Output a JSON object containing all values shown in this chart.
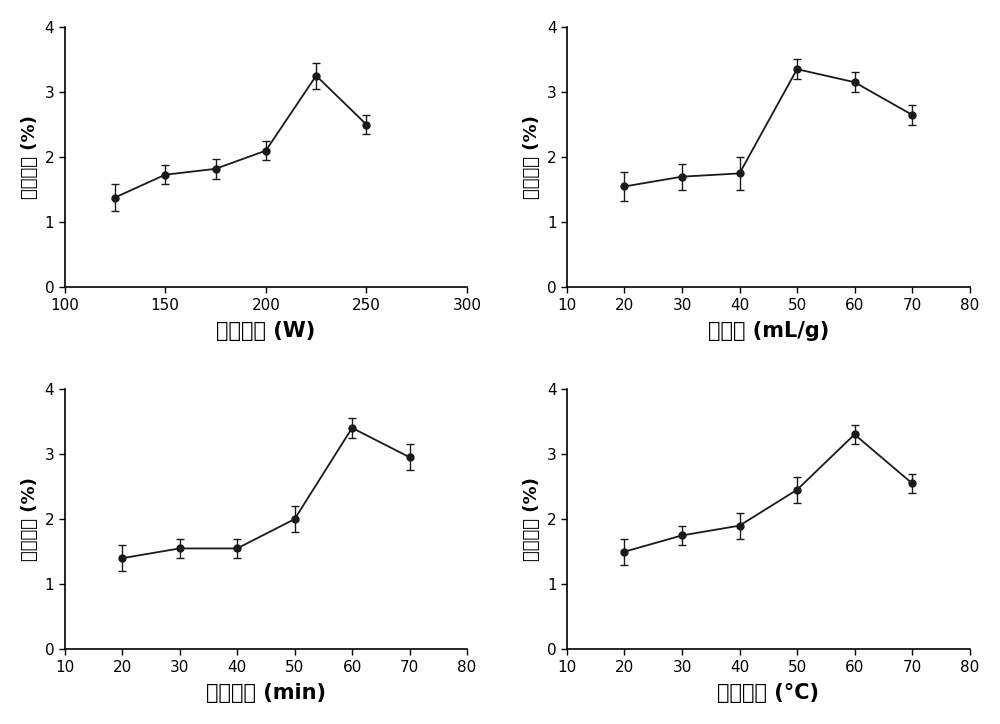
{
  "subplots": [
    {
      "x": [
        125,
        150,
        175,
        200,
        225,
        250
      ],
      "y": [
        1.38,
        1.73,
        1.82,
        2.1,
        3.25,
        2.5
      ],
      "yerr": [
        0.2,
        0.15,
        0.15,
        0.15,
        0.2,
        0.15
      ],
      "xlabel": "超声功率 (W)",
      "ylabel": "提取产率 (%)",
      "xlim": [
        100,
        300
      ],
      "xticks": [
        100,
        150,
        200,
        250,
        300
      ],
      "ylim": [
        0,
        4
      ],
      "yticks": [
        0,
        1,
        2,
        3,
        4
      ]
    },
    {
      "x": [
        20,
        30,
        40,
        50,
        60,
        70
      ],
      "y": [
        1.55,
        1.7,
        1.75,
        3.35,
        3.15,
        2.65
      ],
      "yerr": [
        0.22,
        0.2,
        0.25,
        0.15,
        0.15,
        0.15
      ],
      "xlabel": "料液比 (mL/g)",
      "ylabel": "提取产率 (%)",
      "xlim": [
        10,
        80
      ],
      "xticks": [
        10,
        20,
        30,
        40,
        50,
        60,
        70,
        80
      ],
      "ylim": [
        0,
        4
      ],
      "yticks": [
        0,
        1,
        2,
        3,
        4
      ]
    },
    {
      "x": [
        20,
        30,
        40,
        50,
        60,
        70
      ],
      "y": [
        1.4,
        1.55,
        1.55,
        2.0,
        3.4,
        2.95
      ],
      "yerr": [
        0.2,
        0.15,
        0.15,
        0.2,
        0.15,
        0.2
      ],
      "xlabel": "提取时间 (min)",
      "ylabel": "提取产率 (%)",
      "xlim": [
        10,
        80
      ],
      "xticks": [
        10,
        20,
        30,
        40,
        50,
        60,
        70,
        80
      ],
      "ylim": [
        0,
        4
      ],
      "yticks": [
        0,
        1,
        2,
        3,
        4
      ]
    },
    {
      "x": [
        20,
        30,
        40,
        50,
        60,
        70
      ],
      "y": [
        1.5,
        1.75,
        1.9,
        2.45,
        3.3,
        2.55
      ],
      "yerr": [
        0.2,
        0.15,
        0.2,
        0.2,
        0.15,
        0.15
      ],
      "xlabel": "提取温度 (°C)",
      "ylabel": "提取产率 (%)",
      "xlim": [
        10,
        80
      ],
      "xticks": [
        10,
        20,
        30,
        40,
        50,
        60,
        70,
        80
      ],
      "ylim": [
        0,
        4
      ],
      "yticks": [
        0,
        1,
        2,
        3,
        4
      ]
    }
  ],
  "bg_color": "#ffffff",
  "plot_bg_color": "#ffffff",
  "line_color": "#1a1a1a",
  "marker": "o",
  "markersize": 5,
  "linewidth": 1.3,
  "capsize": 3,
  "elinewidth": 1.0,
  "xlabel_fontsize": 15,
  "ylabel_fontsize": 13,
  "tick_fontsize": 11
}
